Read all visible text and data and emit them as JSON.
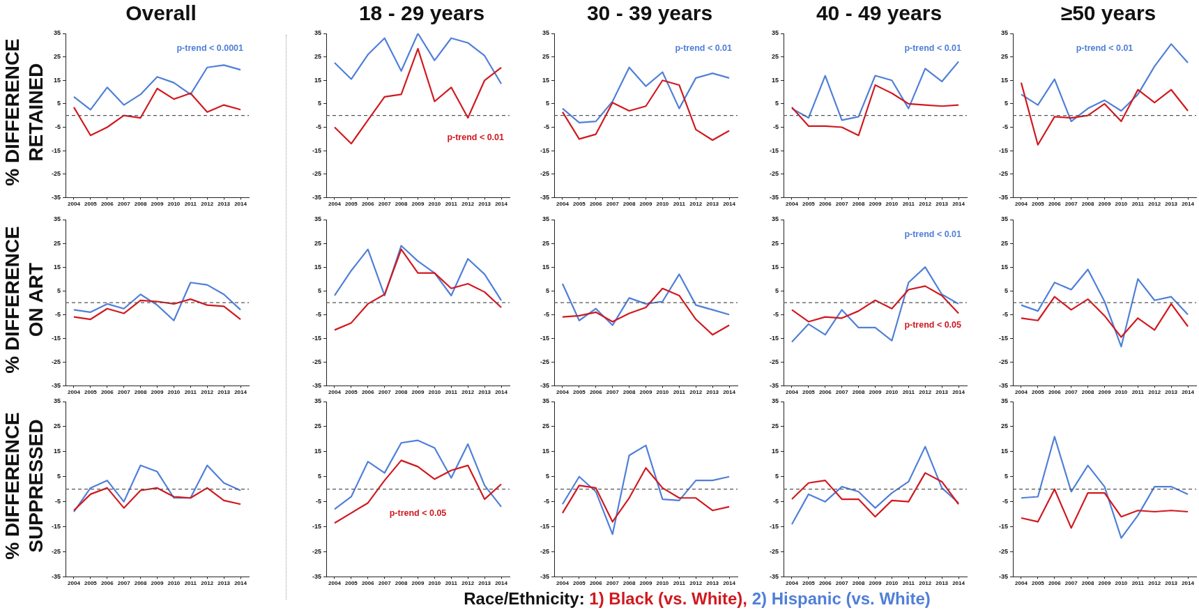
{
  "chart_data": [
    {
      "type": "line",
      "title": "Overall",
      "ylabel": "% DIFFERENCE RETAINED",
      "categories": [
        "2004",
        "2005",
        "2006",
        "2007",
        "2008",
        "2009",
        "2010",
        "2011",
        "2012",
        "2013",
        "2014"
      ],
      "ylim": [
        -35,
        35
      ],
      "yticks": [
        -35,
        -25,
        -15,
        -5,
        5,
        15,
        25,
        35
      ],
      "ref_lines": [
        {
          "axis": "y",
          "value": 0,
          "line_style": "dashed",
          "color": "#555555"
        }
      ],
      "annotations": [
        null,
        "p-trend < 0.0001"
      ],
      "series": [
        {
          "color": "#d0191f",
          "values": [
            3.5,
            -8.5,
            -5,
            0,
            -1,
            11.5,
            7,
            9.5,
            1.5,
            4.5,
            2.5
          ]
        },
        {
          "color": "#4f7fd8",
          "values": [
            8,
            2.5,
            12,
            4.5,
            9,
            16.5,
            14,
            9,
            20.5,
            21.5,
            19.5
          ]
        }
      ]
    },
    {
      "type": "line",
      "title": "18 - 29 years",
      "categories": [
        "2004",
        "2005",
        "2006",
        "2007",
        "2008",
        "2009",
        "2010",
        "2011",
        "2012",
        "2013",
        "2014"
      ],
      "ylim": [
        -35,
        35
      ],
      "yticks": [
        -35,
        -25,
        -15,
        -5,
        5,
        15,
        25,
        35
      ],
      "ref_lines": [
        {
          "axis": "y",
          "value": 0,
          "line_style": "dashed",
          "color": "#555555"
        }
      ],
      "annotations": [
        "p-trend < 0.01"
      ],
      "series": [
        {
          "color": "#d0191f",
          "values": [
            -5,
            -12,
            -2,
            8,
            9,
            28.5,
            6,
            12,
            -1,
            15,
            20.5
          ]
        },
        {
          "color": "#4f7fd8",
          "values": [
            22.5,
            15.5,
            26,
            33,
            19,
            35,
            23.5,
            33,
            31,
            25.5,
            13.5
          ]
        }
      ]
    },
    {
      "type": "line",
      "title": "30 - 39 years",
      "categories": [
        "2004",
        "2005",
        "2006",
        "2007",
        "2008",
        "2009",
        "2010",
        "2011",
        "2012",
        "2013",
        "2014"
      ],
      "ylim": [
        -35,
        35
      ],
      "yticks": [
        -35,
        -25,
        -15,
        -5,
        5,
        15,
        25,
        35
      ],
      "ref_lines": [
        {
          "axis": "y",
          "value": 0,
          "line_style": "dashed",
          "color": "#555555"
        }
      ],
      "annotations": [
        null,
        "p-trend < 0.01"
      ],
      "series": [
        {
          "color": "#d0191f",
          "values": [
            1.5,
            -10,
            -8,
            5.5,
            2,
            4,
            15,
            13,
            -6,
            -10.5,
            -6.5
          ]
        },
        {
          "color": "#4f7fd8",
          "values": [
            3,
            -3,
            -2.5,
            6,
            20.5,
            12.5,
            18.5,
            3,
            16,
            18,
            16
          ]
        }
      ]
    },
    {
      "type": "line",
      "title": "40 - 49 years",
      "categories": [
        "2004",
        "2005",
        "2006",
        "2007",
        "2008",
        "2009",
        "2010",
        "2011",
        "2012",
        "2013",
        "2014"
      ],
      "ylim": [
        -35,
        35
      ],
      "yticks": [
        -35,
        -25,
        -15,
        -5,
        5,
        15,
        25,
        35
      ],
      "ref_lines": [
        {
          "axis": "y",
          "value": 0,
          "line_style": "dashed",
          "color": "#555555"
        }
      ],
      "annotations": [
        null,
        "p-trend < 0.01"
      ],
      "series": [
        {
          "color": "#d0191f",
          "values": [
            3.5,
            -4.5,
            -4.5,
            -5,
            -8.5,
            13,
            9.5,
            5,
            4.5,
            4,
            4.5
          ]
        },
        {
          "color": "#4f7fd8",
          "values": [
            3,
            -1,
            17,
            -2,
            -0.5,
            17,
            15,
            3,
            20,
            14.5,
            23
          ]
        }
      ]
    },
    {
      "type": "line",
      "title": "≥50 years",
      "categories": [
        "2004",
        "2005",
        "2006",
        "2007",
        "2008",
        "2009",
        "2010",
        "2011",
        "2012",
        "2013",
        "2014"
      ],
      "ylim": [
        -35,
        35
      ],
      "yticks": [
        -35,
        -25,
        -15,
        -5,
        5,
        15,
        25,
        35
      ],
      "ref_lines": [
        {
          "axis": "y",
          "value": 0,
          "line_style": "dashed",
          "color": "#555555"
        }
      ],
      "annotations": [
        null,
        "p-trend < 0.01"
      ],
      "series": [
        {
          "color": "#d0191f",
          "values": [
            14,
            -12.5,
            -0.5,
            -1,
            0,
            5,
            -2.5,
            11,
            5.5,
            11,
            2
          ]
        },
        {
          "color": "#4f7fd8",
          "values": [
            9,
            4.5,
            15.5,
            -2.5,
            3,
            6.5,
            2,
            9,
            21,
            30.5,
            22.5
          ]
        }
      ]
    },
    {
      "type": "line",
      "ylabel": "% DIFFERENCE ON ART",
      "categories": [
        "2004",
        "2005",
        "2006",
        "2007",
        "2008",
        "2009",
        "2010",
        "2011",
        "2012",
        "2013",
        "2014"
      ],
      "ylim": [
        -35,
        35
      ],
      "yticks": [
        -35,
        -25,
        -15,
        -5,
        5,
        15,
        25,
        35
      ],
      "ref_lines": [
        {
          "axis": "y",
          "value": 0,
          "line_style": "dashed",
          "color": "#555555"
        }
      ],
      "series": [
        {
          "color": "#d0191f",
          "values": [
            -6,
            -7,
            -2.5,
            -4.5,
            1,
            0.5,
            -0.5,
            1.5,
            -1,
            -1.5,
            -7
          ]
        },
        {
          "color": "#4f7fd8",
          "values": [
            -3,
            -4,
            -0.5,
            -2.5,
            3.5,
            -1,
            -7.5,
            8.5,
            7.5,
            3.5,
            -3
          ]
        }
      ]
    },
    {
      "type": "line",
      "categories": [
        "2004",
        "2005",
        "2006",
        "2007",
        "2008",
        "2009",
        "2010",
        "2011",
        "2012",
        "2013",
        "2014"
      ],
      "ylim": [
        -35,
        35
      ],
      "yticks": [
        -35,
        -25,
        -15,
        -5,
        5,
        15,
        25,
        35
      ],
      "ref_lines": [
        {
          "axis": "y",
          "value": 0,
          "line_style": "dashed",
          "color": "#555555"
        }
      ],
      "series": [
        {
          "color": "#d0191f",
          "values": [
            -11.5,
            -8.5,
            -0.5,
            3.5,
            22.5,
            12.5,
            12.5,
            6,
            8,
            4.5,
            -2
          ]
        },
        {
          "color": "#4f7fd8",
          "values": [
            3,
            13.5,
            22.5,
            3,
            24,
            17.5,
            12.5,
            3,
            18.5,
            12,
            1
          ]
        }
      ]
    },
    {
      "type": "line",
      "categories": [
        "2004",
        "2005",
        "2006",
        "2007",
        "2008",
        "2009",
        "2010",
        "2011",
        "2012",
        "2013",
        "2014"
      ],
      "ylim": [
        -35,
        35
      ],
      "yticks": [
        -35,
        -25,
        -15,
        -5,
        5,
        15,
        25,
        35
      ],
      "ref_lines": [
        {
          "axis": "y",
          "value": 0,
          "line_style": "dashed",
          "color": "#555555"
        }
      ],
      "series": [
        {
          "color": "#d0191f",
          "values": [
            -6,
            -5.5,
            -4,
            -8,
            -4.5,
            -2,
            6,
            3,
            -7,
            -13.5,
            -9.5
          ]
        },
        {
          "color": "#4f7fd8",
          "values": [
            8,
            -7.5,
            -2.5,
            -9.5,
            2,
            -0.5,
            0.5,
            12,
            -1,
            -3,
            -5
          ]
        }
      ]
    },
    {
      "type": "line",
      "categories": [
        "2004",
        "2005",
        "2006",
        "2007",
        "2008",
        "2009",
        "2010",
        "2011",
        "2012",
        "2013",
        "2014"
      ],
      "ylim": [
        -35,
        35
      ],
      "yticks": [
        -35,
        -25,
        -15,
        -5,
        5,
        15,
        25,
        35
      ],
      "ref_lines": [
        {
          "axis": "y",
          "value": 0,
          "line_style": "dashed",
          "color": "#555555"
        }
      ],
      "annotations": [
        "p-trend < 0.05",
        "p-trend < 0.01"
      ],
      "series": [
        {
          "color": "#d0191f",
          "values": [
            -3,
            -8,
            -6,
            -6.5,
            -3.5,
            1,
            -2.5,
            5.5,
            7,
            3,
            -4.5
          ]
        },
        {
          "color": "#4f7fd8",
          "values": [
            -16.5,
            -9,
            -13.5,
            -3,
            -10.5,
            -10.5,
            -16,
            8.5,
            15,
            3.5,
            -0.5
          ]
        }
      ]
    },
    {
      "type": "line",
      "categories": [
        "2004",
        "2005",
        "2006",
        "2007",
        "2008",
        "2009",
        "2010",
        "2011",
        "2012",
        "2013",
        "2014"
      ],
      "ylim": [
        -35,
        35
      ],
      "yticks": [
        -35,
        -25,
        -15,
        -5,
        5,
        15,
        25,
        35
      ],
      "ref_lines": [
        {
          "axis": "y",
          "value": 0,
          "line_style": "dashed",
          "color": "#555555"
        }
      ],
      "series": [
        {
          "color": "#d0191f",
          "values": [
            -6.5,
            -7.5,
            2.5,
            -3,
            1.5,
            -5.5,
            -14.5,
            -6.5,
            -11.5,
            -0.5,
            -10
          ]
        },
        {
          "color": "#4f7fd8",
          "values": [
            -1,
            -3.5,
            8.5,
            5.5,
            14,
            0.5,
            -18.5,
            10,
            1,
            2.5,
            -5
          ]
        }
      ]
    },
    {
      "type": "line",
      "ylabel": "% DIFFERENCE SUPPRESSED",
      "categories": [
        "2004",
        "2005",
        "2006",
        "2007",
        "2008",
        "2009",
        "2010",
        "2011",
        "2012",
        "2013",
        "2014"
      ],
      "ylim": [
        -35,
        35
      ],
      "yticks": [
        -35,
        -25,
        -15,
        -5,
        5,
        15,
        25,
        35
      ],
      "ref_lines": [
        {
          "axis": "y",
          "value": 0,
          "line_style": "dashed",
          "color": "#555555"
        }
      ],
      "series": [
        {
          "color": "#d0191f",
          "values": [
            -8.5,
            -2,
            0.5,
            -7.5,
            -0.5,
            0.5,
            -3,
            -3.5,
            0.5,
            -4.5,
            -6
          ]
        },
        {
          "color": "#4f7fd8",
          "values": [
            -9,
            0.5,
            3.5,
            -5,
            9.5,
            7,
            -3.5,
            -3.5,
            9.5,
            2.5,
            -0.5
          ]
        }
      ]
    },
    {
      "type": "line",
      "categories": [
        "2004",
        "2005",
        "2006",
        "2007",
        "2008",
        "2009",
        "2010",
        "2011",
        "2012",
        "2013",
        "2014"
      ],
      "ylim": [
        -35,
        35
      ],
      "yticks": [
        -35,
        -25,
        -15,
        -5,
        5,
        15,
        25,
        35
      ],
      "ref_lines": [
        {
          "axis": "y",
          "value": 0,
          "line_style": "dashed",
          "color": "#555555"
        }
      ],
      "annotations": [
        "p-trend < 0.05"
      ],
      "series": [
        {
          "color": "#d0191f",
          "values": [
            -13.5,
            -9.5,
            -5.5,
            3.5,
            11.5,
            9,
            4,
            7.5,
            9.5,
            -4,
            2
          ]
        },
        {
          "color": "#4f7fd8",
          "values": [
            -8,
            -3,
            11,
            6.5,
            18.5,
            19.5,
            16.5,
            4.5,
            18,
            1.5,
            -7
          ]
        }
      ]
    },
    {
      "type": "line",
      "legend": "bottom",
      "legend_title": "Race/Ethnicity:",
      "categories": [
        "2004",
        "2005",
        "2006",
        "2007",
        "2008",
        "2009",
        "2010",
        "2011",
        "2012",
        "2013",
        "2014"
      ],
      "ylim": [
        -35,
        35
      ],
      "yticks": [
        -35,
        -25,
        -15,
        -5,
        5,
        15,
        25,
        35
      ],
      "ref_lines": [
        {
          "axis": "y",
          "value": 0,
          "line_style": "dashed",
          "color": "#555555"
        }
      ],
      "series": [
        {
          "name": "1) Black (vs. White),",
          "color": "#d0191f",
          "values": [
            -9.5,
            1.5,
            0.5,
            -13,
            -3.5,
            8.5,
            0.5,
            -3.5,
            -3.5,
            -8.5,
            -7
          ]
        },
        {
          "name": "2) Hispanic (vs. White)",
          "color": "#4f7fd8",
          "values": [
            -6,
            5,
            -1,
            -18,
            13.5,
            17.5,
            -4,
            -4.5,
            3.5,
            3.5,
            5
          ]
        }
      ]
    },
    {
      "type": "line",
      "categories": [
        "2004",
        "2005",
        "2006",
        "2007",
        "2008",
        "2009",
        "2010",
        "2011",
        "2012",
        "2013",
        "2014"
      ],
      "ylim": [
        -35,
        35
      ],
      "yticks": [
        -35,
        -25,
        -15,
        -5,
        5,
        15,
        25,
        35
      ],
      "ref_lines": [
        {
          "axis": "y",
          "value": 0,
          "line_style": "dashed",
          "color": "#555555"
        }
      ],
      "series": [
        {
          "color": "#d0191f",
          "values": [
            -4,
            2.5,
            3.5,
            -4,
            -4,
            -11,
            -4.5,
            -5,
            6.5,
            3,
            -6
          ]
        },
        {
          "color": "#4f7fd8",
          "values": [
            -14,
            -2,
            -5,
            1,
            -1,
            -7.5,
            -1.5,
            3,
            17,
            0.5,
            -5.5
          ]
        }
      ]
    },
    {
      "type": "line",
      "categories": [
        "2004",
        "2005",
        "2006",
        "2007",
        "2008",
        "2009",
        "2010",
        "2011",
        "2012",
        "2013",
        "2014"
      ],
      "ylim": [
        -35,
        35
      ],
      "yticks": [
        -35,
        -25,
        -15,
        -5,
        5,
        15,
        25,
        35
      ],
      "ref_lines": [
        {
          "axis": "y",
          "value": 0,
          "line_style": "dashed",
          "color": "#555555"
        }
      ],
      "series": [
        {
          "color": "#d0191f",
          "values": [
            -11.5,
            -13,
            0,
            -15.5,
            -1.5,
            -1.5,
            -11,
            -8.5,
            -9,
            -8.5,
            -9
          ]
        },
        {
          "color": "#4f7fd8",
          "values": [
            -3.5,
            -3,
            21,
            -1,
            9.5,
            1,
            -19.5,
            -10.5,
            1,
            1,
            -2
          ]
        }
      ]
    }
  ]
}
